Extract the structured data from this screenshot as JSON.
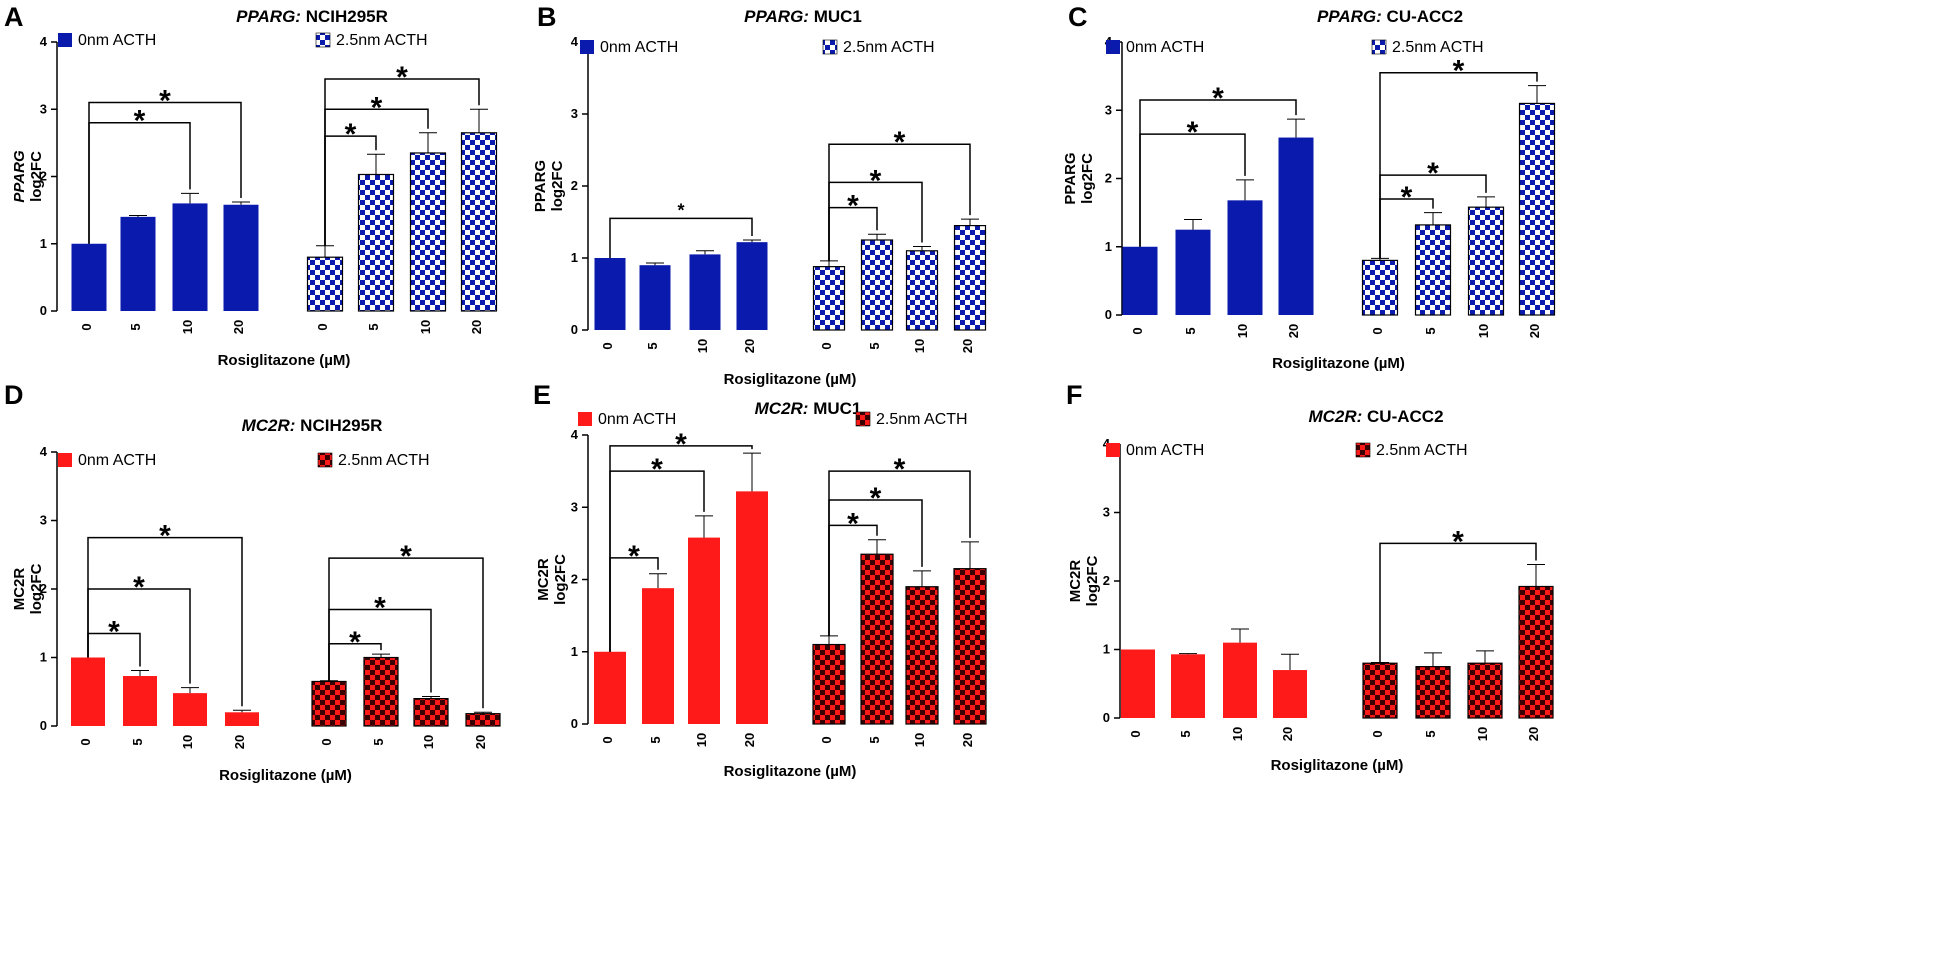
{
  "figure": {
    "colors": {
      "blue": "#0a1aad",
      "red": "#ff1a1a",
      "check_dark_blue": "#0a1aad",
      "check_dark_red": "#8b0000",
      "check_light": "#ffffff",
      "axis": "#000000"
    },
    "groups": [
      "0nm ACTH",
      "2.5nm ACTH"
    ],
    "x_axis_label": "Rosiglitazone (µM)",
    "x_categories": [
      "0",
      "5",
      "10",
      "20"
    ]
  },
  "chart_data": [
    {
      "panel": "A",
      "type": "bar",
      "title_gene": "PPARG:",
      "title_cell": " NCIH295R",
      "ylabel_line1": "PPARG",
      "ylabel_line2": "log2FC",
      "ylabel_italic": true,
      "xlabel": "Rosiglitazone (µM)",
      "ylim": [
        0,
        4
      ],
      "yticks": [
        0,
        1,
        2,
        3,
        4
      ],
      "categories": [
        "0",
        "5",
        "10",
        "20"
      ],
      "series": [
        {
          "name": "0nm ACTH",
          "values": [
            1.0,
            1.4,
            1.6,
            1.58
          ],
          "errors": [
            0.0,
            0.02,
            0.15,
            0.04
          ]
        },
        {
          "name": "2.5nm ACTH",
          "values": [
            0.8,
            2.03,
            2.35,
            2.65
          ],
          "errors": [
            0.17,
            0.3,
            0.3,
            0.35
          ]
        }
      ],
      "significance": [
        {
          "series": 0,
          "from": 0,
          "to": 3,
          "y": 3.1,
          "label": "*",
          "small": false
        },
        {
          "series": 0,
          "from": 0,
          "to": 2,
          "y": 2.8,
          "label": "*",
          "small": false
        },
        {
          "series": 1,
          "from": 0,
          "to": 3,
          "y": 3.45,
          "label": "*",
          "small": false
        },
        {
          "series": 1,
          "from": 0,
          "to": 2,
          "y": 3.0,
          "label": "*",
          "small": false
        },
        {
          "series": 1,
          "from": 0,
          "to": 1,
          "y": 2.6,
          "label": "*",
          "small": false
        }
      ]
    },
    {
      "panel": "B",
      "type": "bar",
      "title_gene": "PPARG:",
      "title_cell": " MUC1",
      "ylabel_line1": "PPARG",
      "ylabel_line2": "log2FC",
      "ylabel_italic": false,
      "xlabel": "Rosiglitazone (µM)",
      "ylim": [
        0,
        4
      ],
      "yticks": [
        0,
        1,
        2,
        3,
        4
      ],
      "categories": [
        "0",
        "5",
        "10",
        "20"
      ],
      "series": [
        {
          "name": "0nm ACTH",
          "values": [
            1.0,
            0.9,
            1.05,
            1.22
          ],
          "errors": [
            0.0,
            0.03,
            0.05,
            0.03
          ]
        },
        {
          "name": "2.5nm ACTH",
          "values": [
            0.88,
            1.25,
            1.1,
            1.45
          ],
          "errors": [
            0.08,
            0.08,
            0.06,
            0.09
          ]
        }
      ],
      "significance": [
        {
          "series": 0,
          "from": 0,
          "to": 3,
          "y": 1.55,
          "label": "*",
          "small": true
        },
        {
          "series": 1,
          "from": 0,
          "to": 3,
          "y": 2.58,
          "label": "*",
          "small": false
        },
        {
          "series": 1,
          "from": 0,
          "to": 2,
          "y": 2.05,
          "label": "*",
          "small": false
        },
        {
          "series": 1,
          "from": 0,
          "to": 1,
          "y": 1.7,
          "label": "*",
          "small": false
        }
      ]
    },
    {
      "panel": "C",
      "type": "bar",
      "title_gene": "PPARG:",
      "title_cell": " CU-ACC2",
      "ylabel_line1": "PPARG",
      "ylabel_line2": "log2FC",
      "ylabel_italic": false,
      "xlabel": "Rosiglitazone (µM)",
      "ylim": [
        0,
        4
      ],
      "yticks": [
        0,
        1,
        2,
        3,
        4
      ],
      "categories": [
        "0",
        "5",
        "10",
        "20"
      ],
      "series": [
        {
          "name": "0nm ACTH",
          "values": [
            1.0,
            1.25,
            1.68,
            2.6
          ],
          "errors": [
            0.0,
            0.15,
            0.3,
            0.27
          ]
        },
        {
          "name": "2.5nm ACTH",
          "values": [
            0.8,
            1.32,
            1.58,
            3.1
          ],
          "errors": [
            0.03,
            0.18,
            0.15,
            0.26
          ]
        }
      ],
      "significance": [
        {
          "series": 0,
          "from": 0,
          "to": 3,
          "y": 3.15,
          "label": "*",
          "small": false
        },
        {
          "series": 0,
          "from": 0,
          "to": 2,
          "y": 2.65,
          "label": "*",
          "small": false
        },
        {
          "series": 1,
          "from": 0,
          "to": 3,
          "y": 3.55,
          "label": "*",
          "small": false
        },
        {
          "series": 1,
          "from": 0,
          "to": 2,
          "y": 2.05,
          "label": "*",
          "small": false
        },
        {
          "series": 1,
          "from": 0,
          "to": 1,
          "y": 1.7,
          "label": "*",
          "small": false
        }
      ]
    },
    {
      "panel": "D",
      "type": "bar",
      "title_gene": "MC2R:",
      "title_cell": " NCIH295R",
      "ylabel_line1": "MC2R",
      "ylabel_line2": "log2FC",
      "ylabel_italic": false,
      "xlabel": "Rosiglitazone (µM)",
      "ylim": [
        0,
        4
      ],
      "yticks": [
        0,
        1,
        2,
        3,
        4
      ],
      "categories": [
        "0",
        "5",
        "10",
        "20"
      ],
      "series": [
        {
          "name": "0nm ACTH",
          "values": [
            1.0,
            0.73,
            0.48,
            0.2
          ],
          "errors": [
            0.0,
            0.08,
            0.08,
            0.03
          ]
        },
        {
          "name": "2.5nm ACTH",
          "values": [
            0.65,
            1.0,
            0.4,
            0.18
          ],
          "errors": [
            0.01,
            0.05,
            0.03,
            0.02
          ]
        }
      ],
      "significance": [
        {
          "series": 0,
          "from": 0,
          "to": 3,
          "y": 2.75,
          "label": "*",
          "small": false
        },
        {
          "series": 0,
          "from": 0,
          "to": 2,
          "y": 2.0,
          "label": "*",
          "small": false
        },
        {
          "series": 0,
          "from": 0,
          "to": 1,
          "y": 1.35,
          "label": "*",
          "small": false
        },
        {
          "series": 1,
          "from": 0,
          "to": 3,
          "y": 2.45,
          "label": "*",
          "small": false
        },
        {
          "series": 1,
          "from": 0,
          "to": 2,
          "y": 1.7,
          "label": "*",
          "small": false
        },
        {
          "series": 1,
          "from": 0,
          "to": 1,
          "y": 1.2,
          "label": "*",
          "small": false
        }
      ]
    },
    {
      "panel": "E",
      "type": "bar",
      "title_gene": "MC2R:",
      "title_cell": " MUC1",
      "ylabel_line1": "MC2R",
      "ylabel_line2": "log2FC",
      "ylabel_italic": false,
      "xlabel": "Rosiglitazone (µM)",
      "ylim": [
        0,
        4
      ],
      "yticks": [
        0,
        1,
        2,
        3,
        4
      ],
      "categories": [
        "0",
        "5",
        "10",
        "20"
      ],
      "series": [
        {
          "name": "0nm ACTH",
          "values": [
            1.0,
            1.88,
            2.58,
            3.22
          ],
          "errors": [
            0.0,
            0.2,
            0.3,
            0.53
          ]
        },
        {
          "name": "2.5nm ACTH",
          "values": [
            1.1,
            2.35,
            1.9,
            2.15
          ],
          "errors": [
            0.12,
            0.2,
            0.22,
            0.37
          ]
        }
      ],
      "significance": [
        {
          "series": 0,
          "from": 0,
          "to": 3,
          "y": 3.85,
          "label": "*",
          "small": false
        },
        {
          "series": 0,
          "from": 0,
          "to": 2,
          "y": 3.5,
          "label": "*",
          "small": false
        },
        {
          "series": 0,
          "from": 0,
          "to": 1,
          "y": 2.3,
          "label": "*",
          "small": false
        },
        {
          "series": 1,
          "from": 0,
          "to": 3,
          "y": 3.5,
          "label": "*",
          "small": false
        },
        {
          "series": 1,
          "from": 0,
          "to": 2,
          "y": 3.1,
          "label": "*",
          "small": false
        },
        {
          "series": 1,
          "from": 0,
          "to": 1,
          "y": 2.75,
          "label": "*",
          "small": false
        }
      ]
    },
    {
      "panel": "F",
      "type": "bar",
      "title_gene": "MC2R:",
      "title_cell": " CU-ACC2",
      "ylabel_line1": "MC2R",
      "ylabel_line2": "log2FC",
      "ylabel_italic": false,
      "xlabel": "Rosiglitazone (µM)",
      "ylim": [
        0,
        4
      ],
      "yticks": [
        0,
        1,
        2,
        3,
        4
      ],
      "categories": [
        "0",
        "5",
        "10",
        "20"
      ],
      "series": [
        {
          "name": "0nm ACTH",
          "values": [
            1.0,
            0.93,
            1.1,
            0.7
          ],
          "errors": [
            0.0,
            0.01,
            0.2,
            0.23
          ]
        },
        {
          "name": "2.5nm ACTH",
          "values": [
            0.8,
            0.75,
            0.8,
            1.92
          ],
          "errors": [
            0.01,
            0.2,
            0.18,
            0.32
          ]
        }
      ],
      "significance": [
        {
          "series": 1,
          "from": 0,
          "to": 3,
          "y": 2.55,
          "label": "*",
          "small": false
        }
      ]
    }
  ]
}
